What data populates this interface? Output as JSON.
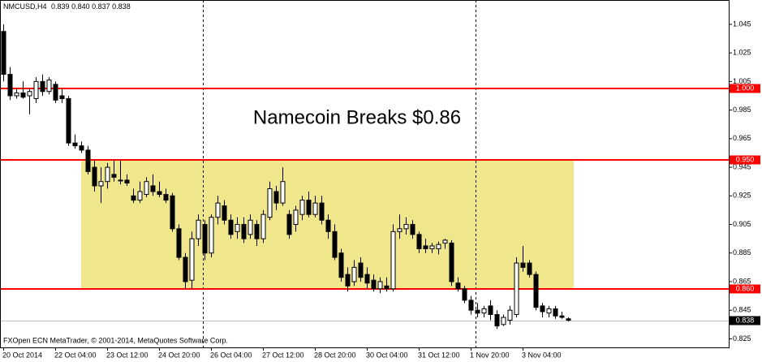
{
  "chart_data": {
    "type": "candlestick",
    "header": {
      "symbol": "NMCUSD,H4",
      "ohlc_labels": [
        "0.839",
        "0.840",
        "0.837",
        "0.838"
      ]
    },
    "annotation": "Namecoin Breaks $0.86",
    "footer": "FXOpen ECN MetaTrader, © 2001-2014, MetaQuotes Software Corp.",
    "categories": [
      "20 Oct 2014",
      null,
      null,
      null,
      null,
      null,
      null,
      null,
      "22 Oct 04:00",
      null,
      null,
      null,
      null,
      null,
      null,
      null,
      "23 Oct 12:00",
      null,
      null,
      null,
      null,
      null,
      null,
      null,
      "24 Oct 20:00",
      null,
      null,
      null,
      null,
      null,
      null,
      null,
      "26 Oct 04:00",
      null,
      null,
      null,
      null,
      null,
      null,
      null,
      "27 Oct 12:00",
      null,
      null,
      null,
      null,
      null,
      null,
      null,
      "28 Oct 20:00",
      null,
      null,
      null,
      null,
      null,
      null,
      null,
      "30 Oct 04:00",
      null,
      null,
      null,
      null,
      null,
      null,
      null,
      "31 Oct 12:00",
      null,
      null,
      null,
      null,
      null,
      null,
      null,
      "1 Nov 20:00",
      null,
      null,
      null,
      null,
      null,
      null,
      null,
      "3 Nov 04:00",
      null,
      null,
      null,
      null,
      null,
      null,
      null
    ],
    "open": [
      1.04,
      1.01,
      0.995,
      0.997,
      0.995,
      0.993,
      1.005,
      0.998,
      1.003,
      0.995,
      0.993,
      0.962,
      0.96,
      0.957,
      0.945,
      0.932,
      0.935,
      0.94,
      0.936,
      0.936,
      0.925,
      0.922,
      0.926,
      0.932,
      0.928,
      0.926,
      0.925,
      0.902,
      0.882,
      0.866,
      0.895,
      0.905,
      0.885,
      0.91,
      0.918,
      0.908,
      0.9,
      0.905,
      0.898,
      0.905,
      0.895,
      0.91,
      0.928,
      0.92,
      0.912,
      0.905,
      0.912,
      0.922,
      0.912,
      0.92,
      0.908,
      0.9,
      0.885,
      0.87,
      0.865,
      0.878,
      0.87,
      0.866,
      0.86,
      0.862,
      0.86,
      0.9,
      0.902,
      0.905,
      0.898,
      0.89,
      0.888,
      0.888,
      0.892,
      0.892,
      0.864,
      0.86,
      0.852,
      0.845,
      0.843,
      0.848,
      0.842,
      0.835,
      0.838,
      0.842,
      0.878,
      0.878,
      0.87,
      0.848,
      0.843,
      0.846,
      0.841,
      0.839
    ],
    "high": [
      1.045,
      1.015,
      1.0,
      1.005,
      1.0,
      1.008,
      1.01,
      1.008,
      1.005,
      1.0,
      0.995,
      0.968,
      0.963,
      0.96,
      0.95,
      0.945,
      0.948,
      0.95,
      0.95,
      0.94,
      0.93,
      0.935,
      0.938,
      0.94,
      0.935,
      0.93,
      0.927,
      0.905,
      0.885,
      0.9,
      0.912,
      0.908,
      0.912,
      0.925,
      0.922,
      0.912,
      0.91,
      0.91,
      0.912,
      0.908,
      0.915,
      0.935,
      0.932,
      0.945,
      0.915,
      0.918,
      0.925,
      0.928,
      0.925,
      0.925,
      0.912,
      0.905,
      0.888,
      0.875,
      0.88,
      0.882,
      0.875,
      0.87,
      0.868,
      0.868,
      0.905,
      0.912,
      0.91,
      0.908,
      0.9,
      0.895,
      0.892,
      0.893,
      0.895,
      0.894,
      0.868,
      0.862,
      0.855,
      0.85,
      0.848,
      0.852,
      0.845,
      0.842,
      0.848,
      0.882,
      0.89,
      0.88,
      0.872,
      0.85,
      0.848,
      0.848,
      0.844,
      0.84
    ],
    "low": [
      1.005,
      0.992,
      0.993,
      0.993,
      0.982,
      0.99,
      0.995,
      0.996,
      0.99,
      0.99,
      0.96,
      0.958,
      0.955,
      0.94,
      0.928,
      0.92,
      0.93,
      0.935,
      0.933,
      0.932,
      0.92,
      0.92,
      0.924,
      0.925,
      0.924,
      0.92,
      0.9,
      0.88,
      0.86,
      0.86,
      0.89,
      0.88,
      0.882,
      0.905,
      0.905,
      0.895,
      0.895,
      0.892,
      0.895,
      0.89,
      0.892,
      0.908,
      0.915,
      0.918,
      0.895,
      0.9,
      0.908,
      0.91,
      0.91,
      0.905,
      0.895,
      0.88,
      0.865,
      0.858,
      0.862,
      0.865,
      0.86,
      0.858,
      0.857,
      0.858,
      0.858,
      0.895,
      0.898,
      0.895,
      0.885,
      0.885,
      0.885,
      0.884,
      0.888,
      0.862,
      0.858,
      0.85,
      0.842,
      0.84,
      0.84,
      0.838,
      0.832,
      0.834,
      0.835,
      0.84,
      0.872,
      0.868,
      0.845,
      0.84,
      0.84,
      0.839,
      0.839,
      0.837
    ],
    "close": [
      1.01,
      0.995,
      0.997,
      0.994,
      0.998,
      1.005,
      0.998,
      1.006,
      0.992,
      0.993,
      0.962,
      0.96,
      0.957,
      0.942,
      0.932,
      0.935,
      0.945,
      0.938,
      0.936,
      0.934,
      0.922,
      0.928,
      0.935,
      0.928,
      0.926,
      0.922,
      0.902,
      0.882,
      0.865,
      0.895,
      0.908,
      0.885,
      0.91,
      0.92,
      0.908,
      0.898,
      0.905,
      0.895,
      0.908,
      0.895,
      0.912,
      0.93,
      0.92,
      0.935,
      0.898,
      0.915,
      0.922,
      0.912,
      0.92,
      0.908,
      0.9,
      0.882,
      0.868,
      0.862,
      0.875,
      0.868,
      0.864,
      0.86,
      0.865,
      0.86,
      0.9,
      0.902,
      0.905,
      0.898,
      0.888,
      0.888,
      0.89,
      0.891,
      0.894,
      0.865,
      0.86,
      0.852,
      0.845,
      0.843,
      0.846,
      0.842,
      0.834,
      0.84,
      0.845,
      0.878,
      0.875,
      0.87,
      0.847,
      0.844,
      0.846,
      0.841,
      0.84,
      0.838
    ],
    "bull_color": "#ffffff",
    "bear_color": "#000000",
    "ylim": [
      0.819,
      1.062
    ],
    "yticks": [
      1.045,
      1.025,
      1.005,
      0.985,
      0.965,
      0.945,
      0.925,
      0.905,
      0.885,
      0.865,
      0.845,
      0.825
    ],
    "levels": [
      {
        "value": 1,
        "label": "1.000"
      },
      {
        "value": 0.95,
        "label": "0.950"
      },
      {
        "value": 0.86,
        "label": "0.860"
      }
    ],
    "level_color": "#ff0000",
    "zone": {
      "ylim": [
        0.86,
        0.95
      ],
      "color": "#f0e68c"
    },
    "last_price": 0.838
  }
}
